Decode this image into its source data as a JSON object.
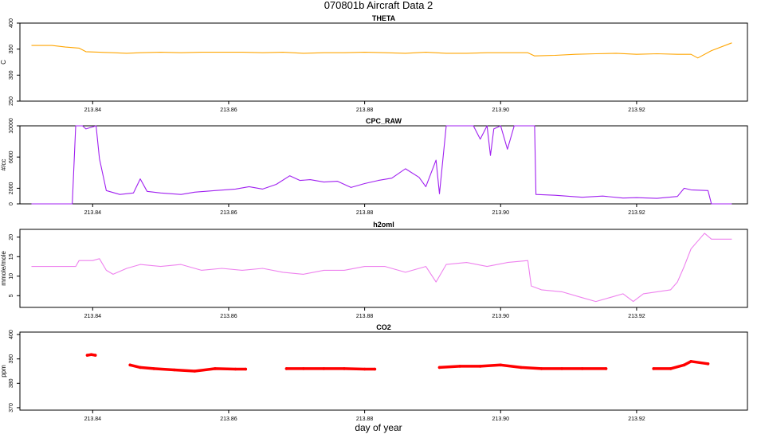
{
  "title": "070801b   Aircraft Data 2",
  "xlabel": "day of year",
  "chart_data": [
    {
      "type": "line",
      "title": "THETA",
      "ylabel": "C",
      "color": "#FFA500",
      "xlim": [
        213.8293,
        213.9363
      ],
      "ylim": [
        250,
        400
      ],
      "yticks": [
        250,
        300,
        350,
        400
      ],
      "xticks": [
        "213.84",
        "213.86",
        "213.88",
        "213.90",
        "213.92"
      ],
      "x": [
        213.831,
        213.834,
        213.836,
        213.838,
        213.839,
        213.841,
        213.843,
        213.845,
        213.847,
        213.85,
        213.853,
        213.856,
        213.859,
        213.862,
        213.865,
        213.868,
        213.871,
        213.874,
        213.877,
        213.88,
        213.883,
        213.886,
        213.889,
        213.892,
        213.895,
        213.898,
        213.901,
        213.904,
        213.905,
        213.908,
        213.911,
        213.914,
        213.917,
        213.92,
        213.923,
        213.926,
        213.928,
        213.929,
        213.931,
        213.934
      ],
      "values": [
        357,
        357,
        354,
        352,
        345,
        344,
        343,
        342,
        343,
        344,
        343,
        344,
        344,
        344,
        343,
        344,
        342,
        343,
        343,
        344,
        343,
        342,
        344,
        342,
        342,
        343,
        343,
        343,
        337,
        338,
        340,
        341,
        342,
        340,
        341,
        340,
        340,
        333,
        347,
        362
      ]
    },
    {
      "type": "line",
      "title": "CPC_RAW",
      "ylabel": "#/cc",
      "color": "#A020F0",
      "xlim": [
        213.8293,
        213.9363
      ],
      "ylim": [
        0,
        10000
      ],
      "yticks": [
        0,
        2000,
        6000,
        10000
      ],
      "xticks": [
        "213.84",
        "213.86",
        "213.88",
        "213.90",
        "213.92"
      ],
      "x": [
        213.831,
        213.837,
        213.8375,
        213.8385,
        213.839,
        213.8405,
        213.841,
        213.842,
        213.844,
        213.846,
        213.847,
        213.848,
        213.85,
        213.853,
        213.855,
        213.858,
        213.861,
        213.863,
        213.865,
        213.867,
        213.869,
        213.8705,
        213.872,
        213.874,
        213.876,
        213.878,
        213.88,
        213.882,
        213.884,
        213.886,
        213.888,
        213.889,
        213.8905,
        213.891,
        213.892,
        213.896,
        213.897,
        213.898,
        213.8985,
        213.899,
        213.9,
        213.901,
        213.902,
        213.904,
        213.905,
        213.9052,
        213.908,
        213.912,
        213.915,
        213.918,
        213.92,
        213.923,
        213.926,
        213.927,
        213.928,
        213.9305,
        213.931,
        213.934
      ],
      "values": [
        0,
        0,
        10000,
        10000,
        9600,
        10000,
        5800,
        1700,
        1200,
        1400,
        3200,
        1600,
        1400,
        1200,
        1500,
        1700,
        1900,
        2200,
        1900,
        2500,
        3600,
        3000,
        3100,
        2800,
        2900,
        2100,
        2600,
        3000,
        3300,
        4500,
        3400,
        2200,
        5600,
        1300,
        10000,
        10000,
        8300,
        10000,
        6200,
        9600,
        10000,
        7000,
        10000,
        10000,
        10000,
        1200,
        1100,
        850,
        1000,
        750,
        800,
        700,
        950,
        2000,
        1800,
        1700,
        0,
        0
      ]
    },
    {
      "type": "line",
      "title": "h2oml",
      "ylabel": "mmole/mole",
      "color": "#EE82EE",
      "xlim": [
        213.8293,
        213.9363
      ],
      "ylim": [
        2,
        22
      ],
      "yticks": [
        5,
        10,
        15,
        20
      ],
      "xticks": [
        "213.84",
        "213.86",
        "213.88",
        "213.90",
        "213.92"
      ],
      "x": [
        213.831,
        213.8375,
        213.838,
        213.84,
        213.841,
        213.842,
        213.843,
        213.845,
        213.847,
        213.85,
        213.853,
        213.856,
        213.859,
        213.862,
        213.865,
        213.868,
        213.871,
        213.874,
        213.877,
        213.88,
        213.883,
        213.886,
        213.889,
        213.8905,
        213.892,
        213.895,
        213.898,
        213.901,
        213.904,
        213.9045,
        213.906,
        213.909,
        213.912,
        213.914,
        213.916,
        213.918,
        213.9195,
        213.921,
        213.923,
        213.925,
        213.926,
        213.927,
        213.928,
        213.929,
        213.93,
        213.931,
        213.934
      ],
      "values": [
        12.5,
        12.5,
        14,
        14,
        14.5,
        11.5,
        10.5,
        12,
        13,
        12.5,
        13,
        11.5,
        12,
        11.5,
        12,
        11,
        10.5,
        11.5,
        11.5,
        12.5,
        12.5,
        11,
        12.5,
        8.5,
        13,
        13.5,
        12.5,
        13.5,
        14,
        7.5,
        6.5,
        6,
        4.5,
        3.5,
        4.5,
        5.5,
        3.5,
        5.5,
        6,
        6.5,
        8.5,
        12.5,
        17,
        19,
        21,
        19.5,
        19.5
      ]
    },
    {
      "type": "scatter",
      "title": "CO2",
      "ylabel": "ppm",
      "color": "#FF0000",
      "xlim": [
        213.8293,
        213.9363
      ],
      "ylim": [
        369,
        401
      ],
      "yticks": [
        370,
        380,
        390,
        400
      ],
      "xticks": [
        "213.84",
        "213.86",
        "213.88",
        "213.90",
        "213.92"
      ],
      "segments": [
        {
          "x": [
            213.8392,
            213.8398,
            213.8404
          ],
          "values": [
            391.5,
            391.8,
            391.5
          ]
        },
        {
          "x": [
            213.8455,
            213.847,
            213.849,
            213.852,
            213.855,
            213.858,
            213.861,
            213.8625
          ],
          "values": [
            387.5,
            386.5,
            386.0,
            385.5,
            385.0,
            386.0,
            385.8,
            385.8
          ]
        },
        {
          "x": [
            213.8685,
            213.871,
            213.874,
            213.877,
            213.88,
            213.8815
          ],
          "values": [
            386.0,
            386.0,
            386.0,
            386.0,
            385.8,
            385.8
          ]
        },
        {
          "x": [
            213.891,
            213.894,
            213.897,
            213.9,
            213.903,
            213.906,
            213.909,
            213.912,
            213.9155
          ],
          "values": [
            386.5,
            387.0,
            387.0,
            387.5,
            386.5,
            386.0,
            386.0,
            386.0,
            386.0
          ]
        },
        {
          "x": [
            213.9225,
            213.925,
            213.927,
            213.928,
            213.9305
          ],
          "values": [
            386.0,
            386.0,
            387.5,
            389.0,
            388.0
          ]
        }
      ]
    }
  ]
}
